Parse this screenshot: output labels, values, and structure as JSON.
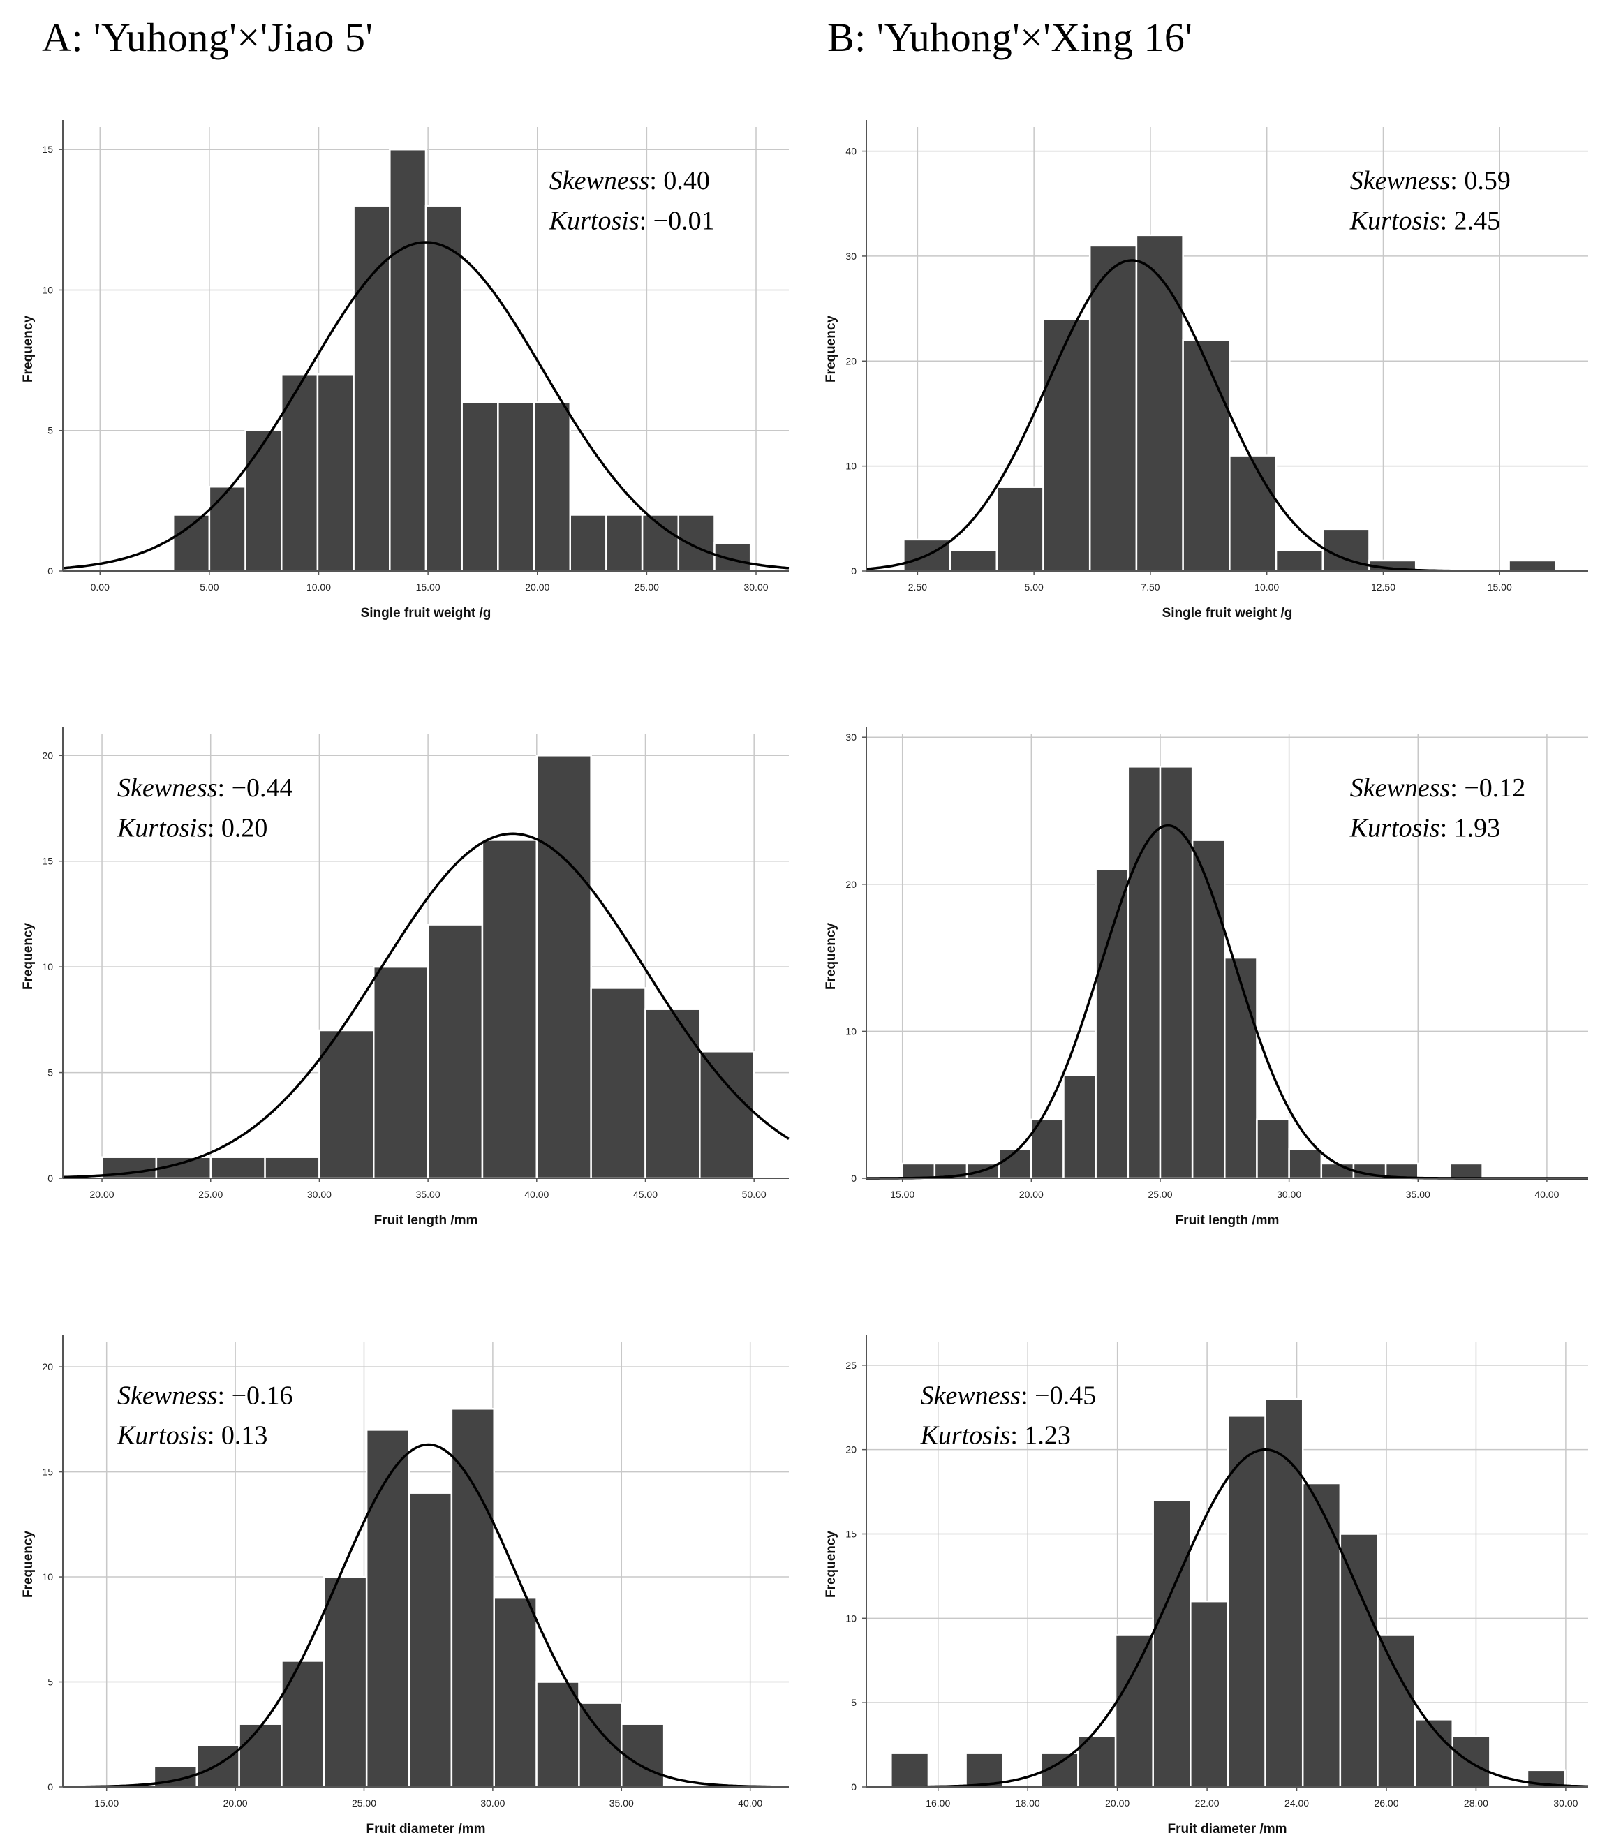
{
  "columns": [
    {
      "title": "A: 'Yuhong'×'Jiao 5'"
    },
    {
      "title": "B: 'Yuhong'×'Xing 16'"
    }
  ],
  "chart_data": [
    {
      "id": "a-weight",
      "column": "A",
      "type": "bar",
      "xlabel": "Single fruit weight /g",
      "ylabel": "Frequency",
      "xlim": [
        -1.7,
        31.5
      ],
      "ylim": [
        0,
        15.8
      ],
      "bin_width": 1.65,
      "x_ticks": [
        0,
        5,
        10,
        15,
        20,
        25,
        30
      ],
      "x_tick_labels": [
        "0.00",
        "5.00",
        "10.00",
        "15.00",
        "20.00",
        "25.00",
        "30.00"
      ],
      "y_ticks": [
        0,
        5,
        10,
        15
      ],
      "y_tick_labels": [
        "0",
        "5",
        "10",
        "15"
      ],
      "bin_starts": [
        3.35,
        5.0,
        6.65,
        8.3,
        9.95,
        11.6,
        13.25,
        14.9,
        16.55,
        18.2,
        19.85,
        21.5,
        23.15,
        24.8,
        26.45,
        28.1
      ],
      "values": [
        2,
        3,
        5,
        7,
        7,
        13,
        15,
        13,
        6,
        6,
        6,
        2,
        2,
        2,
        2,
        1
      ],
      "normal_fit": {
        "mean": 14.9,
        "sd": 5.4,
        "peak": 11.7
      },
      "stats": {
        "skewness_label": "Skewness",
        "skewness": "0.40",
        "kurtosis_label": "Kurtosis",
        "kurtosis": "−0.01",
        "position": "top-right"
      }
    },
    {
      "id": "b-weight",
      "column": "B",
      "type": "bar",
      "xlabel": "Single fruit weight /g",
      "ylabel": "Frequency",
      "xlim": [
        1.4,
        16.9
      ],
      "ylim": [
        0,
        42.3
      ],
      "bin_width": 1.0,
      "x_ticks": [
        2.5,
        5,
        7.5,
        10,
        12.5,
        15
      ],
      "x_tick_labels": [
        "2.50",
        "5.00",
        "7.50",
        "10.00",
        "12.50",
        "15.00"
      ],
      "y_ticks": [
        0,
        10,
        20,
        30,
        40
      ],
      "y_tick_labels": [
        "0",
        "10",
        "20",
        "30",
        "40"
      ],
      "bin_starts": [
        2.2,
        3.2,
        4.2,
        5.2,
        6.2,
        7.2,
        8.2,
        9.2,
        10.2,
        11.2,
        12.2,
        15.2
      ],
      "values": [
        3,
        2,
        8,
        24,
        31,
        32,
        22,
        11,
        2,
        4,
        1,
        1
      ],
      "normal_fit": {
        "mean": 7.1,
        "sd": 1.8,
        "peak": 29.6
      },
      "stats": {
        "skewness_label": "Skewness",
        "skewness": "0.59",
        "kurtosis_label": "Kurtosis",
        "kurtosis": "2.45",
        "position": "top-right"
      }
    },
    {
      "id": "a-length",
      "column": "A",
      "type": "bar",
      "xlabel": "Fruit length /mm",
      "ylabel": "Frequency",
      "xlim": [
        18.2,
        51.6
      ],
      "ylim": [
        0,
        21.0
      ],
      "bin_width": 2.5,
      "x_ticks": [
        20,
        25,
        30,
        35,
        40,
        45,
        50
      ],
      "x_tick_labels": [
        "20.00",
        "25.00",
        "30.00",
        "35.00",
        "40.00",
        "45.00",
        "50.00"
      ],
      "y_ticks": [
        0,
        5,
        10,
        15,
        20
      ],
      "y_tick_labels": [
        "0",
        "5",
        "10",
        "15",
        "20"
      ],
      "bin_starts": [
        20.0,
        22.5,
        25.0,
        27.5,
        30.0,
        32.5,
        35.0,
        37.5,
        40.0,
        42.5,
        45.0,
        47.5
      ],
      "values": [
        1,
        1,
        1,
        1,
        7,
        10,
        12,
        16,
        20,
        9,
        8,
        6
      ],
      "normal_fit": {
        "mean": 38.9,
        "sd": 6.1,
        "peak": 16.3
      },
      "stats": {
        "skewness_label": "Skewness",
        "skewness": "−0.44",
        "kurtosis_label": "Kurtosis",
        "kurtosis": "0.20",
        "position": "top-left"
      }
    },
    {
      "id": "b-length",
      "column": "B",
      "type": "bar",
      "xlabel": "Fruit length /mm",
      "ylabel": "Frequency",
      "xlim": [
        13.6,
        41.6
      ],
      "ylim": [
        0,
        30.2
      ],
      "bin_width": 1.25,
      "x_ticks": [
        15,
        20,
        25,
        30,
        35,
        40
      ],
      "x_tick_labels": [
        "15.00",
        "20.00",
        "25.00",
        "30.00",
        "35.00",
        "40.00"
      ],
      "y_ticks": [
        0,
        10,
        20,
        30
      ],
      "y_tick_labels": [
        "0",
        "10",
        "20",
        "30"
      ],
      "bin_starts": [
        15.0,
        16.25,
        17.5,
        18.75,
        20.0,
        21.25,
        22.5,
        23.75,
        25.0,
        26.25,
        27.5,
        28.75,
        30.0,
        31.25,
        32.5,
        33.75,
        36.25
      ],
      "values": [
        1,
        1,
        1,
        2,
        4,
        7,
        21,
        28,
        28,
        23,
        15,
        4,
        2,
        1,
        1,
        1,
        1
      ],
      "normal_fit": {
        "mean": 25.3,
        "sd": 2.6,
        "peak": 24.0
      },
      "stats": {
        "skewness_label": "Skewness",
        "skewness": "−0.12",
        "kurtosis_label": "Kurtosis",
        "kurtosis": "1.93",
        "position": "top-right"
      }
    },
    {
      "id": "a-diameter",
      "column": "A",
      "type": "bar",
      "xlabel": "Fruit diameter /mm",
      "ylabel": "Frequency",
      "xlim": [
        13.3,
        41.5
      ],
      "ylim": [
        0,
        21.2
      ],
      "bin_width": 1.65,
      "x_ticks": [
        15,
        20,
        25,
        30,
        35,
        40
      ],
      "x_tick_labels": [
        "15.00",
        "20.00",
        "25.00",
        "30.00",
        "35.00",
        "40.00"
      ],
      "y_ticks": [
        0,
        5,
        10,
        15,
        20
      ],
      "y_tick_labels": [
        "0",
        "5",
        "10",
        "15",
        "20"
      ],
      "bin_starts": [
        16.85,
        18.5,
        20.15,
        21.8,
        23.45,
        25.1,
        26.75,
        28.4,
        30.05,
        31.7,
        33.35,
        35.0
      ],
      "values": [
        1,
        2,
        3,
        6,
        10,
        17,
        14,
        18,
        9,
        5,
        4,
        3
      ],
      "normal_fit": {
        "mean": 27.5,
        "sd": 3.5,
        "peak": 16.3
      },
      "stats": {
        "skewness_label": "Skewness",
        "skewness": "−0.16",
        "kurtosis_label": "Kurtosis",
        "kurtosis": "0.13",
        "position": "top-left"
      }
    },
    {
      "id": "b-diameter",
      "column": "B",
      "type": "bar",
      "xlabel": "Fruit diameter /mm",
      "ylabel": "Frequency",
      "xlim": [
        14.4,
        30.5
      ],
      "ylim": [
        0,
        26.4
      ],
      "bin_width": 0.835,
      "x_ticks": [
        16,
        18,
        20,
        22,
        24,
        26,
        28,
        30
      ],
      "x_tick_labels": [
        "16.00",
        "18.00",
        "20.00",
        "22.00",
        "24.00",
        "26.00",
        "28.00",
        "30.00"
      ],
      "y_ticks": [
        0,
        5,
        10,
        15,
        20,
        25
      ],
      "y_tick_labels": [
        "0",
        "5",
        "10",
        "15",
        "20",
        "25"
      ],
      "bin_starts": [
        14.95,
        16.62,
        18.29,
        19.125,
        19.96,
        20.795,
        21.63,
        22.465,
        23.3,
        24.135,
        24.97,
        25.805,
        26.64,
        27.475,
        29.145
      ],
      "values": [
        2,
        2,
        2,
        3,
        9,
        17,
        11,
        22,
        23,
        18,
        15,
        9,
        4,
        3,
        1
      ],
      "normal_fit": {
        "mean": 23.3,
        "sd": 2.0,
        "peak": 20.0
      },
      "stats": {
        "skewness_label": "Skewness",
        "skewness": "−0.45",
        "kurtosis_label": "Kurtosis",
        "kurtosis": "1.23",
        "position": "top-left"
      }
    }
  ]
}
